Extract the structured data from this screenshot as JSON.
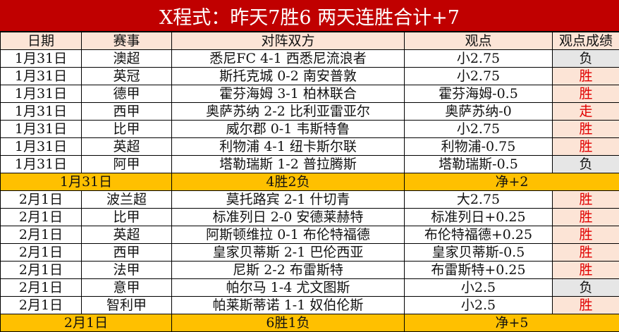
{
  "title": "X程式：昨天7胜6  两天连胜合计+7",
  "headers": [
    "日期",
    "赛事",
    "对阵双方",
    "观点",
    "观点成绩"
  ],
  "colors": {
    "title_bg": "#c00000",
    "header_bg": "#fce4d6",
    "summary_bg": "#ffc000",
    "win_text": "#e00000",
    "loss_bg": "#e6e6e6"
  },
  "groups": [
    {
      "rows": [
        {
          "date": "1月31日",
          "league": "澳超",
          "match": "悉尼FC 4-1 西悉尼流浪者",
          "view": "小2.75",
          "result": "负"
        },
        {
          "date": "1月31日",
          "league": "英冠",
          "match": "斯托克城 0-2 南安普敦",
          "view": "小2.75",
          "result": "胜"
        },
        {
          "date": "1月31日",
          "league": "德甲",
          "match": "霍芬海姆 3-1 柏林联合",
          "view": "霍芬海姆-0.5",
          "result": "胜"
        },
        {
          "date": "1月31日",
          "league": "西甲",
          "match": "奥萨苏纳 2-2 比利亚雷亚尔",
          "view": "奥萨苏纳-0",
          "result": "走"
        },
        {
          "date": "1月31日",
          "league": "比甲",
          "match": "威尔郡 0-1 韦斯特鲁",
          "view": "小2.75",
          "result": "胜"
        },
        {
          "date": "1月31日",
          "league": "英超",
          "match": "利物浦 4-1 纽卡斯尔联",
          "view": "利物浦-0.75",
          "result": "胜"
        },
        {
          "date": "1月31日",
          "league": "阿甲",
          "match": "塔勒瑞斯 1-2 普拉腾斯",
          "view": "塔勒瑞斯-0.5",
          "result": "负"
        }
      ],
      "summary": {
        "date": "1月31日",
        "record": "4胜2负",
        "net": "净+2"
      }
    },
    {
      "rows": [
        {
          "date": "2月1日",
          "league": "波兰超",
          "match": "莫托路宾 2-1 什切青",
          "view": "大2.75",
          "result": "胜"
        },
        {
          "date": "2月1日",
          "league": "比甲",
          "match": "标准列日 2-0 安德莱赫特",
          "view": "标准列日+0.25",
          "result": "胜"
        },
        {
          "date": "2月1日",
          "league": "英超",
          "match": "阿斯顿维拉 0-1 布伦特福德",
          "view": "布伦特福德+0.25",
          "result": "胜"
        },
        {
          "date": "2月1日",
          "league": "西甲",
          "match": "皇家贝蒂斯 2-1 巴伦西亚",
          "view": "皇家贝蒂斯-0.5",
          "result": "胜"
        },
        {
          "date": "2月1日",
          "league": "法甲",
          "match": "尼斯 2-2 布雷斯特",
          "view": "布雷斯特+0.25",
          "result": "胜"
        },
        {
          "date": "2月1日",
          "league": "意甲",
          "match": "帕尔马 1-4 尤文图斯",
          "view": "小2.5",
          "result": "负"
        },
        {
          "date": "2月1日",
          "league": "智利甲",
          "match": "帕莱斯蒂诺 1-1 奴伯伦斯",
          "view": "小2.5",
          "result": "胜"
        }
      ],
      "summary": {
        "date": "2月1日",
        "record": "6胜1负",
        "net": "净+5"
      }
    }
  ]
}
